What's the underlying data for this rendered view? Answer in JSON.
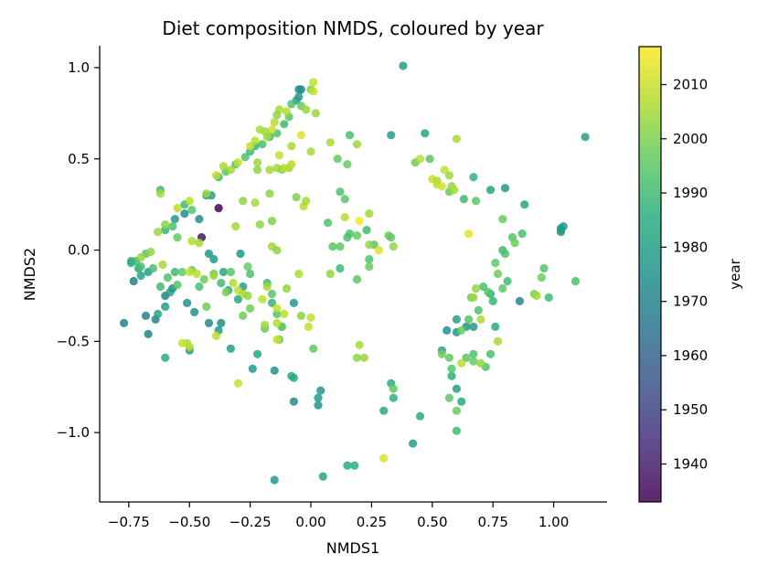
{
  "chart_data": {
    "type": "scatter",
    "title": "Diet composition NMDS, coloured by year",
    "xlabel": "NMDS1",
    "ylabel": "NMDS2",
    "xlim": [
      -0.87,
      1.22
    ],
    "ylim": [
      -1.38,
      1.12
    ],
    "xticks": [
      -0.75,
      -0.5,
      -0.25,
      0.0,
      0.25,
      0.5,
      0.75,
      1.0
    ],
    "xtick_labels": [
      "−0.75",
      "−0.50",
      "−0.25",
      "0.00",
      "0.25",
      "0.50",
      "0.75",
      "1.00"
    ],
    "yticks": [
      -1.0,
      -0.5,
      0.0,
      0.5,
      1.0
    ],
    "ytick_labels": [
      "−1.0",
      "−0.5",
      "0.0",
      "0.5",
      "1.0"
    ],
    "grid": false,
    "colormap": "viridis",
    "colorbar": {
      "label": "year",
      "range": [
        1933,
        2017
      ],
      "ticks": [
        1940,
        1950,
        1960,
        1970,
        1980,
        1990,
        2000,
        2010
      ],
      "tick_labels": [
        "1940",
        "1950",
        "1960",
        "1970",
        "1980",
        "1990",
        "2000",
        "2010"
      ]
    },
    "points": [
      [
        -0.38,
        0.23,
        1934
      ],
      [
        -0.45,
        0.07,
        1938
      ],
      [
        -0.73,
        -0.17,
        1968
      ],
      [
        -0.77,
        -0.4,
        1970
      ],
      [
        -0.68,
        -0.36,
        1970
      ],
      [
        -0.67,
        -0.46,
        1970
      ],
      [
        -0.64,
        -0.38,
        1970
      ],
      [
        -0.6,
        -0.25,
        1970
      ],
      [
        -0.57,
        -0.21,
        1972
      ],
      [
        -0.51,
        -0.29,
        1975
      ],
      [
        -0.48,
        -0.34,
        1975
      ],
      [
        -0.42,
        -0.4,
        1972
      ],
      [
        -0.37,
        -0.4,
        1975
      ],
      [
        -0.38,
        -0.44,
        1978
      ],
      [
        -0.33,
        -0.54,
        1980
      ],
      [
        -0.24,
        -0.65,
        1978
      ],
      [
        -0.15,
        -0.66,
        1976
      ],
      [
        -0.12,
        -0.42,
        1978
      ],
      [
        -0.07,
        -0.29,
        1978
      ],
      [
        -0.07,
        -0.7,
        1985
      ],
      [
        -0.08,
        -0.69,
        1985
      ],
      [
        -0.07,
        -0.83,
        1973
      ],
      [
        0.03,
        -0.81,
        1978
      ],
      [
        0.03,
        -0.85,
        1976
      ],
      [
        0.04,
        -0.77,
        1978
      ],
      [
        -0.15,
        -1.26,
        1978
      ],
      [
        0.05,
        -1.24,
        1982
      ],
      [
        0.15,
        -1.18,
        1985
      ],
      [
        0.18,
        -1.18,
        1986
      ],
      [
        -0.56,
        0.17,
        1978
      ],
      [
        -0.52,
        0.2,
        1975
      ],
      [
        -0.46,
        0.17,
        1974
      ],
      [
        -0.43,
        0.3,
        1980
      ],
      [
        -0.41,
        0.3,
        1980
      ],
      [
        -0.05,
        0.88,
        1975
      ],
      [
        -0.04,
        0.88,
        1972
      ],
      [
        -0.05,
        0.84,
        1978
      ],
      [
        -0.06,
        0.82,
        1980
      ],
      [
        0.38,
        1.01,
        1980
      ],
      [
        0.47,
        0.64,
        1982
      ],
      [
        0.33,
        0.63,
        1980
      ],
      [
        0.8,
        0.34,
        1978
      ],
      [
        0.74,
        0.33,
        1982
      ],
      [
        0.88,
        0.25,
        1982
      ],
      [
        1.03,
        0.1,
        1978
      ],
      [
        1.04,
        0.13,
        1978
      ],
      [
        1.03,
        0.12,
        1978
      ],
      [
        1.03,
        0.11,
        1980
      ],
      [
        1.13,
        0.62,
        1980
      ],
      [
        0.86,
        -0.28,
        1972
      ],
      [
        -0.58,
        -0.23,
        1980
      ],
      [
        -0.6,
        -0.31,
        1980
      ],
      [
        -0.63,
        -0.35,
        1982
      ],
      [
        -0.67,
        -0.12,
        1980
      ],
      [
        -0.7,
        -0.14,
        1982
      ],
      [
        -0.71,
        -0.1,
        1983
      ],
      [
        -0.74,
        -0.07,
        1985
      ],
      [
        -0.74,
        -0.06,
        1986
      ],
      [
        -0.6,
        -0.59,
        1985
      ],
      [
        -0.5,
        -0.55,
        1978
      ],
      [
        -0.22,
        -0.57,
        1982
      ],
      [
        -0.34,
        -0.22,
        1982
      ],
      [
        -0.28,
        -0.2,
        1980
      ],
      [
        -0.3,
        -0.27,
        1982
      ],
      [
        -0.42,
        -0.02,
        1978
      ],
      [
        -0.4,
        -0.05,
        1978
      ],
      [
        -0.36,
        -0.12,
        1983
      ],
      [
        -0.29,
        -0.02,
        1978
      ],
      [
        0.56,
        -0.44,
        1975
      ],
      [
        0.6,
        -0.45,
        1976
      ],
      [
        0.64,
        -0.42,
        1977
      ],
      [
        0.6,
        -0.38,
        1980
      ],
      [
        0.67,
        -0.42,
        1978
      ],
      [
        0.54,
        -0.55,
        1983
      ],
      [
        0.58,
        -0.69,
        1986
      ],
      [
        0.6,
        -0.76,
        1980
      ],
      [
        0.62,
        -0.83,
        1984
      ],
      [
        0.45,
        -0.91,
        1985
      ],
      [
        0.42,
        -1.06,
        1980
      ],
      [
        0.3,
        -0.88,
        1984
      ],
      [
        0.33,
        -0.73,
        1985
      ],
      [
        0.34,
        -0.81,
        1986
      ],
      [
        0.76,
        -0.42,
        1985
      ],
      [
        0.6,
        -0.99,
        1990
      ],
      [
        0.75,
        -0.28,
        1988
      ],
      [
        0.74,
        -0.24,
        1987
      ],
      [
        -0.72,
        -0.06,
        1990
      ],
      [
        -0.7,
        -0.09,
        1992
      ],
      [
        -0.68,
        -0.02,
        1995
      ],
      [
        -0.65,
        -0.1,
        1992
      ],
      [
        -0.62,
        -0.2,
        1990
      ],
      [
        -0.59,
        -0.15,
        1993
      ],
      [
        -0.56,
        -0.12,
        1990
      ],
      [
        -0.55,
        -0.19,
        1995
      ],
      [
        -0.53,
        -0.12,
        1996
      ],
      [
        -0.49,
        -0.11,
        1997
      ],
      [
        -0.46,
        -0.2,
        1992
      ],
      [
        -0.44,
        -0.16,
        1998
      ],
      [
        -0.4,
        -0.13,
        1996
      ],
      [
        -0.37,
        -0.18,
        1990
      ],
      [
        -0.33,
        -0.12,
        1995
      ],
      [
        -0.26,
        -0.09,
        1997
      ],
      [
        -0.25,
        -0.13,
        1992
      ],
      [
        -0.18,
        -0.18,
        1990
      ],
      [
        -0.16,
        -0.24,
        1995
      ],
      [
        -0.14,
        -0.35,
        1993
      ],
      [
        -0.19,
        -0.43,
        1996
      ],
      [
        -0.16,
        -0.29,
        1988
      ],
      [
        -0.25,
        -0.32,
        1998
      ],
      [
        -0.62,
        0.33,
        1990
      ],
      [
        -0.6,
        0.11,
        1988
      ],
      [
        -0.57,
        0.13,
        1992
      ],
      [
        -0.55,
        0.07,
        1996
      ],
      [
        -0.52,
        0.25,
        1990
      ],
      [
        -0.49,
        0.22,
        1995
      ],
      [
        -0.38,
        0.4,
        1990
      ],
      [
        -0.35,
        0.43,
        1995
      ],
      [
        -0.31,
        0.47,
        1993
      ],
      [
        -0.27,
        0.51,
        1993
      ],
      [
        -0.25,
        0.54,
        1990
      ],
      [
        -0.23,
        0.57,
        1988
      ],
      [
        -0.2,
        0.58,
        1992
      ],
      [
        -0.17,
        0.62,
        1990
      ],
      [
        -0.14,
        0.64,
        1993
      ],
      [
        -0.11,
        0.69,
        1990
      ],
      [
        -0.09,
        0.73,
        1995
      ],
      [
        -0.08,
        0.8,
        1993
      ],
      [
        -0.04,
        0.79,
        1998
      ],
      [
        0.0,
        0.88,
        2000
      ],
      [
        0.12,
        0.32,
        1993
      ],
      [
        0.14,
        0.28,
        1995
      ],
      [
        0.07,
        0.15,
        1993
      ],
      [
        0.09,
        0.02,
        1995
      ],
      [
        0.12,
        0.02,
        1996
      ],
      [
        0.15,
        0.07,
        1993
      ],
      [
        0.16,
        0.09,
        1992
      ],
      [
        0.19,
        0.08,
        1997
      ],
      [
        0.23,
        0.11,
        1990
      ],
      [
        0.26,
        0.03,
        1995
      ],
      [
        0.32,
        0.08,
        1998
      ],
      [
        0.33,
        0.07,
        1996
      ],
      [
        0.24,
        -0.05,
        1993
      ],
      [
        0.24,
        -0.09,
        1997
      ],
      [
        0.12,
        -0.1,
        1990
      ],
      [
        0.19,
        -0.16,
        1995
      ],
      [
        0.11,
        0.5,
        1996
      ],
      [
        0.16,
        0.63,
        1992
      ],
      [
        0.15,
        0.47,
        1997
      ],
      [
        0.43,
        0.48,
        1998
      ],
      [
        0.49,
        0.5,
        1995
      ],
      [
        0.57,
        0.32,
        1997
      ],
      [
        0.63,
        0.28,
        1990
      ],
      [
        0.67,
        0.4,
        1988
      ],
      [
        0.68,
        0.27,
        1995
      ],
      [
        0.79,
        0.17,
        1997
      ],
      [
        0.83,
        0.07,
        1994
      ],
      [
        0.84,
        0.04,
        1998
      ],
      [
        0.87,
        0.09,
        1992
      ],
      [
        0.79,
        0.0,
        1990
      ],
      [
        0.8,
        -0.02,
        1993
      ],
      [
        0.76,
        -0.07,
        1996
      ],
      [
        0.77,
        -0.13,
        1998
      ],
      [
        0.81,
        -0.17,
        1990
      ],
      [
        0.79,
        -0.21,
        1996
      ],
      [
        0.73,
        -0.23,
        1994
      ],
      [
        0.71,
        -0.2,
        1992
      ],
      [
        0.66,
        -0.26,
        1997
      ],
      [
        0.69,
        -0.33,
        1993
      ],
      [
        0.65,
        -0.38,
        1995
      ],
      [
        0.62,
        -0.44,
        1998
      ],
      [
        0.67,
        -0.57,
        1992
      ],
      [
        0.67,
        -0.61,
        1997
      ],
      [
        0.72,
        -0.64,
        1994
      ],
      [
        0.74,
        -0.57,
        1992
      ],
      [
        0.64,
        -0.59,
        1995
      ],
      [
        0.58,
        -0.65,
        1994
      ],
      [
        0.57,
        -0.59,
        1996
      ],
      [
        0.54,
        -0.57,
        1998
      ],
      [
        0.57,
        -0.81,
        1995
      ],
      [
        0.6,
        -0.88,
        1997
      ],
      [
        0.34,
        -0.76,
        1996
      ],
      [
        0.96,
        -0.1,
        1994
      ],
      [
        0.95,
        -0.15,
        1998
      ],
      [
        0.98,
        -0.26,
        1990
      ],
      [
        1.09,
        -0.17,
        1993
      ],
      [
        0.92,
        -0.24,
        2000
      ],
      [
        -0.43,
        -0.31,
        1998
      ],
      [
        -0.35,
        -0.23,
        2000
      ],
      [
        -0.12,
        -0.42,
        1998
      ],
      [
        -0.28,
        -0.36,
        1998
      ],
      [
        -0.13,
        -0.49,
        1995
      ],
      [
        -0.04,
        -0.36,
        2002
      ],
      [
        0.01,
        -0.54,
        1996
      ],
      [
        -0.28,
        0.27,
        2003
      ],
      [
        -0.23,
        0.26,
        2005
      ],
      [
        -0.17,
        0.31,
        2002
      ],
      [
        -0.16,
        0.16,
        2000
      ],
      [
        -0.21,
        0.14,
        2003
      ],
      [
        -0.31,
        0.13,
        2005
      ],
      [
        -0.16,
        0.02,
        2005
      ],
      [
        -0.14,
        0.0,
        2002
      ],
      [
        -0.17,
        0.44,
        2005
      ],
      [
        -0.22,
        0.48,
        2004
      ],
      [
        -0.22,
        0.44,
        2002
      ],
      [
        -0.14,
        0.45,
        2005
      ],
      [
        -0.12,
        0.44,
        2002
      ],
      [
        -0.09,
        0.45,
        2004
      ],
      [
        -0.06,
        0.29,
        2000
      ],
      [
        -0.1,
        0.76,
        2007
      ],
      [
        -0.02,
        0.77,
        2004
      ],
      [
        0.02,
        0.75,
        2004
      ],
      [
        -0.13,
        0.77,
        2006
      ],
      [
        -0.14,
        0.74,
        2003
      ],
      [
        -0.15,
        0.7,
        2008
      ],
      [
        -0.16,
        0.66,
        2010
      ],
      [
        -0.18,
        0.62,
        2006
      ],
      [
        -0.19,
        0.65,
        2004
      ],
      [
        -0.21,
        0.66,
        2006
      ],
      [
        -0.23,
        0.6,
        2008
      ],
      [
        -0.25,
        0.57,
        2010
      ],
      [
        -0.3,
        0.48,
        2010
      ],
      [
        -0.33,
        0.44,
        2005
      ],
      [
        -0.36,
        0.46,
        2006
      ],
      [
        -0.39,
        0.41,
        2008
      ],
      [
        -0.43,
        0.31,
        2004
      ],
      [
        -0.5,
        0.27,
        2008
      ],
      [
        -0.55,
        0.23,
        2008
      ],
      [
        -0.62,
        0.31,
        2005
      ],
      [
        -0.63,
        0.1,
        2004
      ],
      [
        -0.6,
        0.14,
        2002
      ],
      [
        -0.61,
        -0.08,
        2005
      ],
      [
        -0.66,
        -0.01,
        2003
      ],
      [
        -0.7,
        -0.04,
        2004
      ],
      [
        -0.49,
        0.05,
        2007
      ],
      [
        -0.46,
        0.04,
        2005
      ],
      [
        -0.47,
        -0.13,
        2008
      ],
      [
        -0.5,
        -0.12,
        2010
      ],
      [
        -0.4,
        -0.14,
        2005
      ],
      [
        -0.32,
        -0.18,
        2007
      ],
      [
        -0.3,
        -0.22,
        2009
      ],
      [
        -0.28,
        -0.24,
        2006
      ],
      [
        -0.26,
        -0.25,
        2003
      ],
      [
        -0.2,
        -0.27,
        2008
      ],
      [
        -0.18,
        -0.2,
        2005
      ],
      [
        -0.19,
        -0.41,
        2005
      ],
      [
        -0.14,
        -0.4,
        2007
      ],
      [
        -0.1,
        -0.21,
        2003
      ],
      [
        -0.14,
        -0.32,
        2010
      ],
      [
        -0.14,
        -0.49,
        2010
      ],
      [
        -0.39,
        -0.47,
        2008
      ],
      [
        -0.51,
        -0.51,
        2005
      ],
      [
        -0.53,
        -0.51,
        2010
      ],
      [
        -0.5,
        -0.53,
        2008
      ],
      [
        -0.3,
        -0.73,
        2009
      ],
      [
        -0.13,
        0.52,
        2009
      ],
      [
        -0.08,
        0.57,
        2006
      ],
      [
        -0.11,
        0.45,
        2008
      ],
      [
        -0.08,
        0.47,
        2008
      ],
      [
        -0.04,
        0.63,
        2013
      ],
      [
        -0.03,
        0.24,
        2007
      ],
      [
        -0.02,
        0.27,
        2005
      ],
      [
        0.0,
        0.54,
        2005
      ],
      [
        0.01,
        0.87,
        2010
      ],
      [
        0.01,
        0.92,
        2009
      ],
      [
        0.08,
        0.59,
        2006
      ],
      [
        0.19,
        0.58,
        2004
      ],
      [
        0.14,
        0.18,
        2008
      ],
      [
        0.2,
        0.16,
        2016
      ],
      [
        0.24,
        0.2,
        2005
      ],
      [
        0.28,
        0.0,
        2012
      ],
      [
        0.24,
        0.03,
        2003
      ],
      [
        0.34,
        0.02,
        2003
      ],
      [
        0.08,
        -0.13,
        2003
      ],
      [
        -0.05,
        -0.13,
        2006
      ],
      [
        -0.01,
        -0.42,
        2009
      ],
      [
        -0.11,
        -0.35,
        2008
      ],
      [
        0.0,
        -0.37,
        2009
      ],
      [
        0.2,
        -0.52,
        2006
      ],
      [
        0.19,
        -0.59,
        2002
      ],
      [
        0.22,
        -0.59,
        2004
      ],
      [
        0.3,
        -1.14,
        2012
      ],
      [
        0.45,
        0.5,
        2008
      ],
      [
        0.5,
        0.39,
        2010
      ],
      [
        0.52,
        0.38,
        2006
      ],
      [
        0.52,
        0.36,
        2008
      ],
      [
        0.54,
        0.35,
        2011
      ],
      [
        0.55,
        0.44,
        2009
      ],
      [
        0.57,
        0.41,
        2005
      ],
      [
        0.58,
        0.35,
        2003
      ],
      [
        0.59,
        0.33,
        2006
      ],
      [
        0.6,
        0.61,
        2006
      ],
      [
        0.65,
        0.09,
        2014
      ],
      [
        0.67,
        -0.26,
        2004
      ],
      [
        0.68,
        -0.21,
        2003
      ],
      [
        0.7,
        -0.38,
        2006
      ],
      [
        0.77,
        -0.5,
        2006
      ],
      [
        0.7,
        -0.62,
        2003
      ],
      [
        0.62,
        -0.62,
        2008
      ],
      [
        0.93,
        -0.25,
        2005
      ]
    ]
  }
}
